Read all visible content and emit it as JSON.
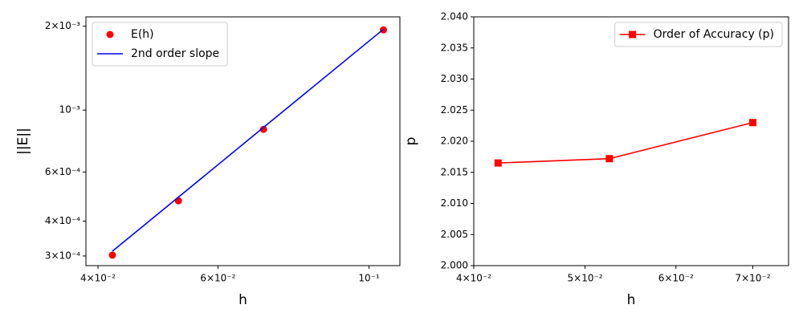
{
  "chart_data": [
    {
      "type": "line",
      "xlabel": "h",
      "ylabel": "||E||",
      "xscale": "log",
      "yscale": "log",
      "xlim": [
        0.0384,
        0.111
      ],
      "ylim": [
        0.000277,
        0.00216
      ],
      "xticks": [
        {
          "value": 0.04,
          "label": "4×10⁻²"
        },
        {
          "value": 0.06,
          "label": "6×10⁻²"
        },
        {
          "value": 0.1,
          "label": "10⁻¹"
        }
      ],
      "yticks": [
        {
          "value": 0.0003,
          "label": "3×10⁻⁴"
        },
        {
          "value": 0.0004,
          "label": "4×10⁻⁴"
        },
        {
          "value": 0.0006,
          "label": "6×10⁻⁴"
        },
        {
          "value": 0.001,
          "label": "10⁻³"
        },
        {
          "value": 0.002,
          "label": "2×10⁻³"
        }
      ],
      "legend": "upper left",
      "series": [
        {
          "name": "E(h)",
          "color": "#ff0000",
          "marker": "o",
          "linestyle": "none",
          "x": [
            0.042,
            0.0525,
            0.07,
            0.105
          ],
          "values": [
            0.000302,
            0.000473,
            0.000853,
            0.00194
          ]
        },
        {
          "name": "2nd order slope",
          "color": "#0000ff",
          "marker": "none",
          "linestyle": "solid",
          "x": [
            0.042,
            0.0525,
            0.07,
            0.105
          ],
          "values": [
            0.000312,
            0.0004875,
            0.000867,
            0.00195
          ]
        }
      ]
    },
    {
      "type": "line",
      "xlabel": "h",
      "ylabel": "p",
      "xscale": "log",
      "yscale": "linear",
      "xlim": [
        0.04,
        0.0752
      ],
      "ylim": [
        2.0,
        2.04
      ],
      "xticks": [
        {
          "value": 0.04,
          "label": "4×10⁻²"
        },
        {
          "value": 0.05,
          "label": "5×10⁻²"
        },
        {
          "value": 0.06,
          "label": "6×10⁻²"
        },
        {
          "value": 0.07,
          "label": "7×10⁻²"
        }
      ],
      "yticks": [
        {
          "value": 2.0,
          "label": "2.000"
        },
        {
          "value": 2.005,
          "label": "2.005"
        },
        {
          "value": 2.01,
          "label": "2.010"
        },
        {
          "value": 2.015,
          "label": "2.015"
        },
        {
          "value": 2.02,
          "label": "2.020"
        },
        {
          "value": 2.025,
          "label": "2.025"
        },
        {
          "value": 2.03,
          "label": "2.030"
        },
        {
          "value": 2.035,
          "label": "2.035"
        },
        {
          "value": 2.04,
          "label": "2.040"
        }
      ],
      "legend": "upper right",
      "series": [
        {
          "name": "Order of Accuracy (p)",
          "color": "#ff0000",
          "marker": "s",
          "linestyle": "solid",
          "x": [
            0.042,
            0.0525,
            0.07
          ],
          "values": [
            2.0165,
            2.0172,
            2.023
          ]
        }
      ]
    }
  ]
}
